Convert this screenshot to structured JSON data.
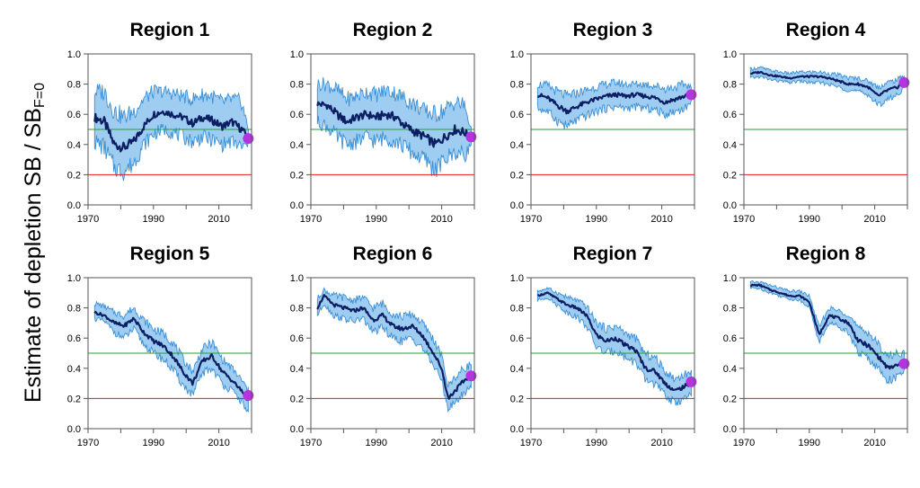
{
  "figure": {
    "ylabel_main": "Estimate of depletion  SB / SB",
    "ylabel_sub": "F=0"
  },
  "colors": {
    "ci_band": "#9fcdf2",
    "ci_edge": "#3b8fd6",
    "median": "#0d1f63",
    "green_ref": "#2e9a3a",
    "red_ref": "#e21b1b",
    "final_point": "#b833e0",
    "axis": "#555555"
  },
  "chart_data": [
    {
      "type": "line",
      "title": "Region 1",
      "xlim": [
        1970,
        2020
      ],
      "ylim": [
        0,
        1
      ],
      "xticks": [
        1970,
        1990,
        2010
      ],
      "yticks": [
        0.0,
        0.2,
        0.4,
        0.6,
        0.8,
        1.0
      ],
      "ref_lines": [
        0.2,
        0.5
      ],
      "x": [
        1972,
        1975,
        1978,
        1981,
        1984,
        1987,
        1990,
        1993,
        1996,
        1999,
        2002,
        2005,
        2008,
        2011,
        2014,
        2017,
        2019
      ],
      "median": [
        0.58,
        0.55,
        0.4,
        0.38,
        0.42,
        0.52,
        0.6,
        0.62,
        0.6,
        0.58,
        0.54,
        0.58,
        0.56,
        0.52,
        0.55,
        0.5,
        0.45
      ],
      "lower": [
        0.42,
        0.38,
        0.25,
        0.22,
        0.28,
        0.4,
        0.47,
        0.5,
        0.48,
        0.45,
        0.42,
        0.45,
        0.43,
        0.4,
        0.42,
        0.38,
        0.4
      ],
      "upper": [
        0.75,
        0.75,
        0.62,
        0.58,
        0.62,
        0.7,
        0.75,
        0.75,
        0.74,
        0.72,
        0.7,
        0.73,
        0.72,
        0.68,
        0.7,
        0.68,
        0.5
      ],
      "final_point": {
        "x": 2019,
        "y": 0.44
      }
    },
    {
      "type": "line",
      "title": "Region 2",
      "xlim": [
        1970,
        2020
      ],
      "ylim": [
        0,
        1
      ],
      "xticks": [
        1970,
        1990,
        2010
      ],
      "yticks": [
        0.0,
        0.2,
        0.4,
        0.6,
        0.8,
        1.0
      ],
      "ref_lines": [
        0.2,
        0.5
      ],
      "x": [
        1972,
        1975,
        1978,
        1981,
        1984,
        1987,
        1990,
        1993,
        1996,
        1999,
        2002,
        2005,
        2008,
        2011,
        2014,
        2017,
        2019
      ],
      "median": [
        0.67,
        0.66,
        0.6,
        0.55,
        0.58,
        0.6,
        0.58,
        0.6,
        0.58,
        0.52,
        0.48,
        0.45,
        0.4,
        0.45,
        0.5,
        0.48,
        0.45
      ],
      "lower": [
        0.55,
        0.52,
        0.45,
        0.4,
        0.42,
        0.45,
        0.42,
        0.45,
        0.42,
        0.38,
        0.33,
        0.3,
        0.23,
        0.3,
        0.35,
        0.33,
        0.4
      ],
      "upper": [
        0.8,
        0.8,
        0.76,
        0.7,
        0.72,
        0.75,
        0.73,
        0.76,
        0.74,
        0.7,
        0.66,
        0.62,
        0.6,
        0.63,
        0.68,
        0.66,
        0.5
      ],
      "final_point": {
        "x": 2019,
        "y": 0.45
      }
    },
    {
      "type": "line",
      "title": "Region 3",
      "xlim": [
        1970,
        2020
      ],
      "ylim": [
        0,
        1
      ],
      "xticks": [
        1970,
        1990,
        2010
      ],
      "yticks": [
        0.0,
        0.2,
        0.4,
        0.6,
        0.8,
        1.0
      ],
      "ref_lines": [
        0.2,
        0.5
      ],
      "x": [
        1972,
        1975,
        1978,
        1981,
        1984,
        1987,
        1990,
        1993,
        1996,
        1999,
        2002,
        2005,
        2008,
        2011,
        2014,
        2017,
        2019
      ],
      "median": [
        0.73,
        0.71,
        0.66,
        0.62,
        0.65,
        0.68,
        0.7,
        0.72,
        0.73,
        0.72,
        0.73,
        0.72,
        0.71,
        0.68,
        0.7,
        0.72,
        0.73
      ],
      "lower": [
        0.64,
        0.62,
        0.56,
        0.52,
        0.56,
        0.59,
        0.62,
        0.64,
        0.65,
        0.64,
        0.65,
        0.64,
        0.63,
        0.6,
        0.62,
        0.64,
        0.68
      ],
      "upper": [
        0.8,
        0.79,
        0.75,
        0.72,
        0.74,
        0.76,
        0.78,
        0.8,
        0.81,
        0.8,
        0.8,
        0.8,
        0.79,
        0.77,
        0.78,
        0.8,
        0.78
      ],
      "final_point": {
        "x": 2019,
        "y": 0.73
      }
    },
    {
      "type": "line",
      "title": "Region 4",
      "xlim": [
        1970,
        2020
      ],
      "ylim": [
        0,
        1
      ],
      "xticks": [
        1970,
        1990,
        2010
      ],
      "yticks": [
        0.0,
        0.2,
        0.4,
        0.6,
        0.8,
        1.0
      ],
      "ref_lines": [
        0.2,
        0.5
      ],
      "x": [
        1972,
        1975,
        1978,
        1981,
        1984,
        1987,
        1990,
        1993,
        1996,
        1999,
        2002,
        2005,
        2008,
        2011,
        2014,
        2017,
        2019
      ],
      "median": [
        0.87,
        0.88,
        0.86,
        0.85,
        0.84,
        0.85,
        0.85,
        0.85,
        0.84,
        0.82,
        0.8,
        0.8,
        0.78,
        0.72,
        0.76,
        0.78,
        0.82
      ],
      "lower": [
        0.84,
        0.85,
        0.83,
        0.82,
        0.81,
        0.82,
        0.81,
        0.81,
        0.8,
        0.78,
        0.76,
        0.75,
        0.73,
        0.66,
        0.7,
        0.73,
        0.78
      ],
      "upper": [
        0.9,
        0.91,
        0.89,
        0.88,
        0.87,
        0.88,
        0.88,
        0.88,
        0.87,
        0.86,
        0.84,
        0.84,
        0.82,
        0.78,
        0.81,
        0.83,
        0.86
      ],
      "final_point": {
        "x": 2019,
        "y": 0.81
      }
    },
    {
      "type": "line",
      "title": "Region 5",
      "xlim": [
        1970,
        2020
      ],
      "ylim": [
        0,
        1
      ],
      "xticks": [
        1970,
        1990,
        2010
      ],
      "yticks": [
        0.0,
        0.2,
        0.4,
        0.6,
        0.8,
        1.0
      ],
      "ref_lines": [
        0.2,
        0.5
      ],
      "x": [
        1972,
        1975,
        1978,
        1981,
        1984,
        1987,
        1990,
        1993,
        1996,
        1999,
        2002,
        2005,
        2008,
        2011,
        2014,
        2017,
        2019
      ],
      "median": [
        0.77,
        0.75,
        0.7,
        0.68,
        0.73,
        0.64,
        0.58,
        0.55,
        0.48,
        0.38,
        0.3,
        0.45,
        0.48,
        0.38,
        0.32,
        0.25,
        0.18
      ],
      "lower": [
        0.73,
        0.71,
        0.64,
        0.6,
        0.66,
        0.56,
        0.5,
        0.46,
        0.39,
        0.29,
        0.22,
        0.37,
        0.4,
        0.3,
        0.25,
        0.18,
        0.1
      ],
      "upper": [
        0.83,
        0.81,
        0.77,
        0.75,
        0.8,
        0.72,
        0.66,
        0.63,
        0.57,
        0.46,
        0.38,
        0.53,
        0.57,
        0.46,
        0.4,
        0.32,
        0.25
      ],
      "final_point": {
        "x": 2019,
        "y": 0.22
      }
    },
    {
      "type": "line",
      "title": "Region 6",
      "xlim": [
        1970,
        2020
      ],
      "ylim": [
        0,
        1
      ],
      "xticks": [
        1970,
        1990,
        2010
      ],
      "yticks": [
        0.0,
        0.2,
        0.4,
        0.6,
        0.8,
        1.0
      ],
      "ref_lines": [
        0.2,
        0.5
      ],
      "x": [
        1972,
        1974,
        1977,
        1980,
        1983,
        1986,
        1989,
        1992,
        1995,
        1998,
        2001,
        2004,
        2007,
        2010,
        2012,
        2014,
        2017,
        2019
      ],
      "median": [
        0.8,
        0.88,
        0.82,
        0.8,
        0.78,
        0.8,
        0.72,
        0.75,
        0.68,
        0.66,
        0.68,
        0.62,
        0.52,
        0.4,
        0.2,
        0.25,
        0.32,
        0.36
      ],
      "lower": [
        0.75,
        0.83,
        0.75,
        0.73,
        0.71,
        0.73,
        0.64,
        0.67,
        0.6,
        0.58,
        0.6,
        0.54,
        0.44,
        0.32,
        0.13,
        0.17,
        0.24,
        0.28
      ],
      "upper": [
        0.86,
        0.92,
        0.88,
        0.87,
        0.85,
        0.87,
        0.8,
        0.83,
        0.76,
        0.74,
        0.76,
        0.7,
        0.61,
        0.48,
        0.28,
        0.34,
        0.4,
        0.43
      ],
      "final_point": {
        "x": 2019,
        "y": 0.35
      }
    },
    {
      "type": "line",
      "title": "Region 7",
      "xlim": [
        1970,
        2020
      ],
      "ylim": [
        0,
        1
      ],
      "xticks": [
        1970,
        1990,
        2010
      ],
      "yticks": [
        0.0,
        0.2,
        0.4,
        0.6,
        0.8,
        1.0
      ],
      "ref_lines": [
        0.2,
        0.5
      ],
      "x": [
        1972,
        1975,
        1978,
        1981,
        1984,
        1987,
        1990,
        1993,
        1996,
        1999,
        2002,
        2005,
        2008,
        2011,
        2014,
        2017,
        2019
      ],
      "median": [
        0.88,
        0.9,
        0.86,
        0.82,
        0.8,
        0.75,
        0.62,
        0.58,
        0.6,
        0.55,
        0.52,
        0.4,
        0.38,
        0.3,
        0.25,
        0.28,
        0.3
      ],
      "lower": [
        0.85,
        0.87,
        0.82,
        0.77,
        0.74,
        0.68,
        0.54,
        0.5,
        0.52,
        0.47,
        0.44,
        0.32,
        0.3,
        0.22,
        0.17,
        0.2,
        0.22
      ],
      "upper": [
        0.91,
        0.93,
        0.9,
        0.87,
        0.85,
        0.81,
        0.7,
        0.66,
        0.68,
        0.63,
        0.6,
        0.49,
        0.47,
        0.38,
        0.33,
        0.36,
        0.37
      ],
      "final_point": {
        "x": 2019,
        "y": 0.31
      }
    },
    {
      "type": "line",
      "title": "Region 8",
      "xlim": [
        1970,
        2020
      ],
      "ylim": [
        0,
        1
      ],
      "xticks": [
        1970,
        1990,
        2010
      ],
      "yticks": [
        0.0,
        0.2,
        0.4,
        0.6,
        0.8,
        1.0
      ],
      "ref_lines": [
        0.2,
        0.5
      ],
      "x": [
        1972,
        1975,
        1978,
        1981,
        1984,
        1987,
        1990,
        1993,
        1996,
        1999,
        2002,
        2005,
        2008,
        2011,
        2014,
        2017,
        2019
      ],
      "median": [
        0.95,
        0.95,
        0.92,
        0.9,
        0.88,
        0.88,
        0.84,
        0.62,
        0.75,
        0.73,
        0.7,
        0.58,
        0.55,
        0.48,
        0.4,
        0.42,
        0.44
      ],
      "lower": [
        0.93,
        0.93,
        0.9,
        0.88,
        0.86,
        0.85,
        0.81,
        0.57,
        0.7,
        0.68,
        0.64,
        0.5,
        0.47,
        0.4,
        0.32,
        0.34,
        0.38
      ],
      "upper": [
        0.97,
        0.97,
        0.95,
        0.93,
        0.91,
        0.91,
        0.88,
        0.67,
        0.8,
        0.78,
        0.76,
        0.66,
        0.64,
        0.56,
        0.48,
        0.5,
        0.5
      ],
      "final_point": {
        "x": 2019,
        "y": 0.43
      }
    }
  ]
}
